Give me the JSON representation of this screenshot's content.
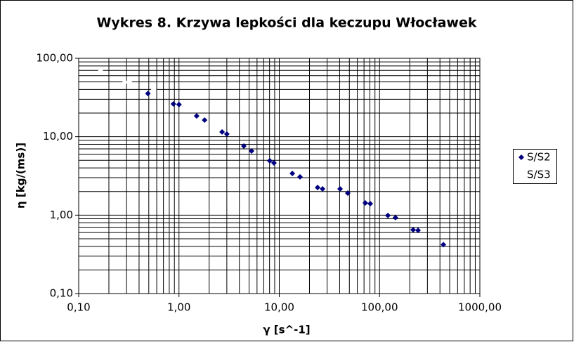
{
  "chart_data": {
    "type": "scatter",
    "title": "Wykres 8. Krzywa lepkości dla keczupu Włocławek",
    "x_label": "γ [s^-1]",
    "y_label": "η [kg/(ms)]",
    "x_log": true,
    "y_log": true,
    "grid": true,
    "legend": "right",
    "xlim": [
      0.1,
      1000
    ],
    "xticks": [
      {
        "value": 0.1,
        "label": "0,10"
      },
      {
        "value": 1,
        "label": "1,00"
      },
      {
        "value": 10,
        "label": "10,00"
      },
      {
        "value": 100,
        "label": "100,00"
      },
      {
        "value": 1000,
        "label": "1000,00"
      }
    ],
    "ylim": [
      0.1,
      100
    ],
    "yticks": [
      {
        "value": 0.1,
        "label": "0,10"
      },
      {
        "value": 1,
        "label": "1,00"
      },
      {
        "value": 10,
        "label": "10,00"
      },
      {
        "value": 100,
        "label": "100,00"
      }
    ],
    "series": [
      {
        "name": "S/S2",
        "color": "#000080",
        "x": [
          0.49,
          0.88,
          1.0,
          1.5,
          1.8,
          2.69,
          3.0,
          4.43,
          5.29,
          8.04,
          8.85,
          13.5,
          16.1,
          24.1,
          27.0,
          40.4,
          48.2,
          72.1,
          80.7,
          121,
          144,
          216,
          242,
          433
        ],
        "values": [
          35.6,
          26.2,
          25.7,
          18.4,
          16.3,
          11.5,
          10.8,
          7.6,
          6.58,
          4.93,
          4.63,
          3.4,
          3.07,
          2.25,
          2.16,
          2.16,
          1.91,
          1.43,
          1.4,
          0.99,
          0.93,
          0.65,
          0.64,
          0.42
        ]
      },
      {
        "name": "S/S3",
        "color": "#ffffff",
        "x": [
          0.165,
          0.29,
          0.32,
          0.56
        ],
        "values": [
          69,
          49.6,
          49.6,
          40
        ]
      }
    ]
  }
}
